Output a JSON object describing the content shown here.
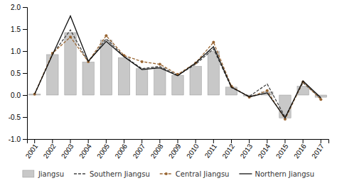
{
  "chart_data": {
    "type": "bar",
    "categories": [
      "2001",
      "2002",
      "2003",
      "2004",
      "2005",
      "2006",
      "2007",
      "2008",
      "2009",
      "2010",
      "2011",
      "2012",
      "2013",
      "2014",
      "2015",
      "2016",
      "2017"
    ],
    "series": [
      {
        "name": "Jiangsu",
        "type": "bar",
        "color": "#c8c8c8",
        "values": [
          0.02,
          0.92,
          1.42,
          0.75,
          1.25,
          0.85,
          0.6,
          0.62,
          0.45,
          0.65,
          1.0,
          0.18,
          -0.02,
          0.07,
          -0.52,
          0.2,
          -0.05
        ]
      },
      {
        "name": "Southern Jiangsu",
        "type": "line",
        "color": "#444444",
        "line_style": "dashed",
        "values": [
          0.02,
          0.93,
          1.48,
          0.75,
          1.28,
          0.88,
          0.6,
          0.65,
          0.45,
          0.7,
          1.05,
          0.17,
          -0.03,
          0.25,
          -0.5,
          0.28,
          -0.08
        ]
      },
      {
        "name": "Central Jiangsu",
        "type": "line",
        "color": "#996633",
        "line_style": "dashed",
        "marker": "circle",
        "values": [
          0.02,
          0.95,
          1.32,
          0.76,
          1.35,
          0.9,
          0.76,
          0.7,
          0.47,
          0.73,
          1.2,
          0.2,
          -0.05,
          0.1,
          -0.55,
          0.3,
          -0.1
        ]
      },
      {
        "name": "Northern Jiangsu",
        "type": "line",
        "color": "#111111",
        "line_style": "solid",
        "values": [
          0.02,
          0.92,
          1.8,
          0.77,
          1.22,
          0.87,
          0.58,
          0.62,
          0.44,
          0.73,
          1.1,
          0.18,
          -0.04,
          0.05,
          -0.52,
          0.32,
          -0.06
        ]
      }
    ],
    "ylim": [
      -1.0,
      2.0
    ],
    "yticks": [
      {
        "value": -1.0,
        "label": "-1.0"
      },
      -0.5,
      {
        "value": 0.0,
        "label": "0.0"
      },
      0.5,
      {
        "value": 1.0,
        "label": "1.0"
      },
      1.5,
      {
        "value": 2.0,
        "label": "2.0"
      }
    ],
    "grid": false,
    "legend": "bottom"
  }
}
